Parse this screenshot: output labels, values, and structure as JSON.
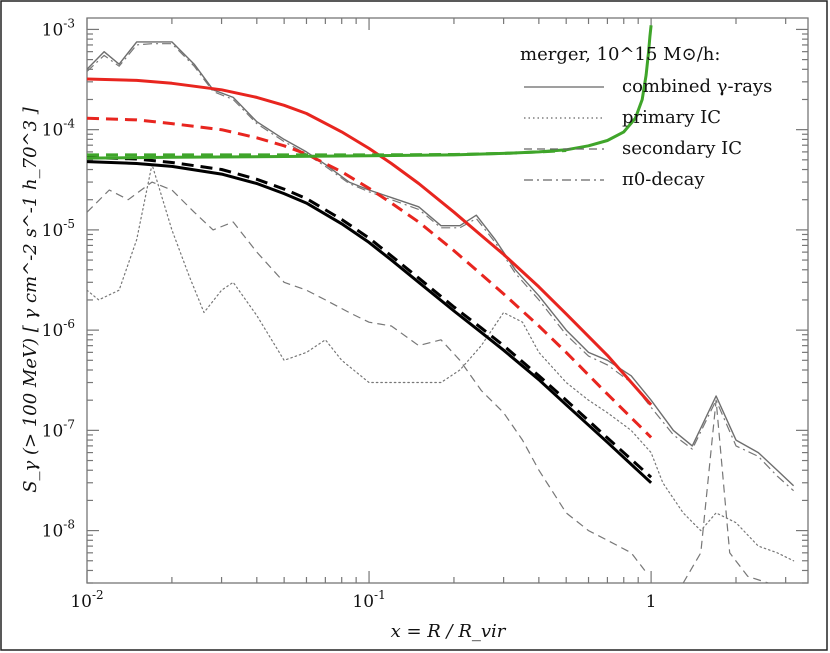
{
  "chart_data": {
    "type": "line",
    "xscale": "log",
    "yscale": "log",
    "xlim": [
      0.01,
      3.6
    ],
    "ylim": [
      3e-09,
      0.0013
    ],
    "xlabel": "x = R / R_vir",
    "ylabel": "S_γ (> 100 MeV) [ γ cm^-2 s^-1 h_70^3 ]",
    "x_ticks": [
      {
        "value": 0.01,
        "base": "10",
        "exp": "-2"
      },
      {
        "value": 0.1,
        "base": "10",
        "exp": "-1"
      },
      {
        "value": 1,
        "base": "1",
        "exp": ""
      }
    ],
    "y_ticks": [
      {
        "value": 1e-08,
        "base": "10",
        "exp": "-8"
      },
      {
        "value": 1e-07,
        "base": "10",
        "exp": "-7"
      },
      {
        "value": 1e-06,
        "base": "10",
        "exp": "-6"
      },
      {
        "value": 1e-05,
        "base": "10",
        "exp": "-5"
      },
      {
        "value": 0.0001,
        "base": "10",
        "exp": "-4"
      },
      {
        "value": 0.001,
        "base": "10",
        "exp": "-3"
      }
    ],
    "legend": {
      "title": "merger, 10^15 M⊙/h:",
      "position": "top-right",
      "entries": [
        {
          "label": "combined γ-rays",
          "style": "solid"
        },
        {
          "label": "primary IC",
          "style": "dotted"
        },
        {
          "label": "secondary IC",
          "style": "dashed"
        },
        {
          "label": "π0-decay",
          "style": "dashdot"
        }
      ]
    },
    "series": [
      {
        "name": "combined γ-rays",
        "color": "#6e6e6e",
        "style": "solid",
        "width": 1.4,
        "x": [
          0.01,
          0.0115,
          0.013,
          0.015,
          0.017,
          0.02,
          0.024,
          0.028,
          0.033,
          0.04,
          0.05,
          0.06,
          0.07,
          0.085,
          0.1,
          0.12,
          0.15,
          0.18,
          0.21,
          0.24,
          0.28,
          0.33,
          0.4,
          0.5,
          0.6,
          0.7,
          0.85,
          1.0,
          1.2,
          1.4,
          1.7,
          2.0,
          2.4,
          2.8,
          3.2
        ],
        "y": [
          0.0004,
          0.0006,
          0.00045,
          0.00075,
          0.00075,
          0.00075,
          0.00045,
          0.00025,
          0.00021,
          0.00012,
          8e-05,
          6e-05,
          4.5e-05,
          3e-05,
          2.5e-05,
          2.1e-05,
          1.7e-05,
          1.1e-05,
          1.1e-05,
          1.4e-05,
          8e-06,
          4e-06,
          2.2e-06,
          1e-06,
          6e-07,
          5e-07,
          3.5e-07,
          2e-07,
          1e-07,
          7e-08,
          2.2e-07,
          8e-08,
          6e-08,
          4e-08,
          2.8e-08
        ]
      },
      {
        "name": "primary IC",
        "color": "#777777",
        "style": "dotted",
        "width": 1.2,
        "x": [
          0.01,
          0.011,
          0.013,
          0.015,
          0.017,
          0.02,
          0.023,
          0.026,
          0.03,
          0.033,
          0.04,
          0.05,
          0.06,
          0.07,
          0.08,
          0.1,
          0.12,
          0.15,
          0.18,
          0.21,
          0.25,
          0.3,
          0.35,
          0.4,
          0.5,
          0.6,
          0.7,
          0.85,
          1.0,
          1.1,
          1.3,
          1.5,
          1.7,
          2.0,
          2.4,
          2.8,
          3.2
        ],
        "y": [
          2.5e-06,
          2e-06,
          2.5e-06,
          8e-06,
          4.5e-05,
          1e-05,
          3.5e-06,
          1.5e-06,
          2.5e-06,
          3e-06,
          1.4e-06,
          5e-07,
          6e-07,
          8e-07,
          5e-07,
          3e-07,
          3e-07,
          3e-07,
          3e-07,
          4e-07,
          7e-07,
          1.5e-06,
          1.2e-06,
          6e-07,
          3e-07,
          2e-07,
          1.5e-07,
          1e-07,
          6e-08,
          3e-08,
          1.5e-08,
          1e-08,
          1.5e-08,
          1.2e-08,
          7e-09,
          6e-09,
          5e-09
        ]
      },
      {
        "name": "secondary IC",
        "color": "#777777",
        "style": "dashed",
        "width": 1.2,
        "x": [
          0.01,
          0.012,
          0.014,
          0.017,
          0.02,
          0.024,
          0.028,
          0.033,
          0.04,
          0.05,
          0.06,
          0.07,
          0.085,
          0.1,
          0.12,
          0.15,
          0.18,
          0.21,
          0.25,
          0.3,
          0.35,
          0.4,
          0.5,
          0.6,
          0.7,
          0.85,
          0.95
        ],
        "y": [
          1.5e-05,
          2.5e-05,
          2e-05,
          3e-05,
          2.5e-05,
          1.5e-05,
          1e-05,
          1.2e-05,
          6e-06,
          3e-06,
          2.5e-06,
          2e-06,
          1.5e-06,
          1.2e-06,
          1.1e-06,
          7e-07,
          8e-07,
          5e-07,
          2.5e-07,
          1.5e-07,
          8e-08,
          4e-08,
          1.5e-08,
          1e-08,
          8e-09,
          6e-09,
          4e-09
        ]
      },
      {
        "name": "secondary IC (tail)",
        "color": "#777777",
        "style": "dashed",
        "width": 1.2,
        "x": [
          1.3,
          1.5,
          1.7,
          1.9,
          2.2,
          2.6
        ],
        "y": [
          3e-09,
          6e-09,
          2e-07,
          6e-09,
          3.5e-09,
          3e-09
        ]
      },
      {
        "name": "π0-decay",
        "color": "#777777",
        "style": "dashdot",
        "width": 1.2,
        "x": [
          0.01,
          0.0115,
          0.013,
          0.015,
          0.017,
          0.02,
          0.024,
          0.028,
          0.033,
          0.04,
          0.05,
          0.06,
          0.07,
          0.085,
          0.1,
          0.12,
          0.15,
          0.18,
          0.21,
          0.24,
          0.28,
          0.33,
          0.4,
          0.5,
          0.6,
          0.7,
          0.85,
          1.0,
          1.2,
          1.4,
          1.7,
          2.0,
          2.4,
          2.8,
          3.2
        ],
        "y": [
          0.00038,
          0.00055,
          0.00043,
          0.0007,
          0.00072,
          0.00072,
          0.00043,
          0.00024,
          0.0002,
          0.000115,
          7.6e-05,
          5.7e-05,
          4.3e-05,
          2.9e-05,
          2.4e-05,
          2e-05,
          1.6e-05,
          1.05e-05,
          1.05e-05,
          1.3e-05,
          7.5e-06,
          3.7e-06,
          2e-06,
          9e-07,
          5.5e-07,
          4.5e-07,
          3e-07,
          1.7e-07,
          9e-08,
          6.5e-08,
          2e-07,
          7e-08,
          5.5e-08,
          3.5e-08,
          2.5e-08
        ]
      },
      {
        "name": "red model",
        "color": "#e8251f",
        "style": "solid",
        "width": 3,
        "x": [
          0.01,
          0.015,
          0.02,
          0.03,
          0.04,
          0.05,
          0.06,
          0.08,
          0.1,
          0.12,
          0.15,
          0.2,
          0.25,
          0.3,
          0.4,
          0.5,
          0.7,
          1.0
        ],
        "y": [
          0.00032,
          0.00031,
          0.00029,
          0.00025,
          0.00021,
          0.000175,
          0.000145,
          9.5e-05,
          6.5e-05,
          4.6e-05,
          2.9e-05,
          1.5e-05,
          8.8e-06,
          5.7e-06,
          2.7e-06,
          1.45e-06,
          5.6e-07,
          1.8e-07
        ]
      },
      {
        "name": "red model (dashed)",
        "color": "#e8251f",
        "style": "bigdash",
        "width": 3,
        "x": [
          0.01,
          0.015,
          0.02,
          0.03,
          0.04,
          0.05,
          0.06,
          0.08,
          0.1,
          0.12,
          0.15,
          0.2,
          0.25,
          0.3,
          0.4,
          0.5,
          0.7,
          1.0
        ],
        "y": [
          0.00013,
          0.000125,
          0.000115,
          0.0001,
          8.3e-05,
          6.9e-05,
          5.7e-05,
          3.8e-05,
          2.6e-05,
          1.85e-05,
          1.2e-05,
          6.2e-06,
          3.6e-06,
          2.3e-06,
          1.1e-06,
          6e-07,
          2.3e-07,
          8.5e-08
        ]
      },
      {
        "name": "black model",
        "color": "#000000",
        "style": "solid",
        "width": 3,
        "x": [
          0.01,
          0.015,
          0.02,
          0.03,
          0.04,
          0.05,
          0.06,
          0.08,
          0.1,
          0.12,
          0.15,
          0.2,
          0.25,
          0.3,
          0.4,
          0.5,
          0.7,
          1.0
        ],
        "y": [
          4.8e-05,
          4.6e-05,
          4.3e-05,
          3.6e-05,
          2.9e-05,
          2.3e-05,
          1.85e-05,
          1.15e-05,
          7.5e-06,
          5e-06,
          3e-06,
          1.55e-06,
          9.5e-07,
          6.3e-07,
          3.2e-07,
          1.8e-07,
          7.6e-08,
          3e-08
        ]
      },
      {
        "name": "black model (dashed)",
        "color": "#000000",
        "style": "bigdash",
        "width": 3,
        "x": [
          0.01,
          0.015,
          0.02,
          0.03,
          0.04,
          0.05,
          0.06,
          0.08,
          0.1,
          0.12,
          0.15,
          0.2,
          0.25,
          0.3,
          0.4,
          0.5,
          0.7,
          1.0
        ],
        "y": [
          5.3e-05,
          5.1e-05,
          4.7e-05,
          4e-05,
          3.2e-05,
          2.55e-05,
          2.05e-05,
          1.27e-05,
          8.3e-06,
          5.5e-06,
          3.3e-06,
          1.7e-06,
          1.05e-06,
          7e-07,
          3.5e-07,
          2e-07,
          8.4e-08,
          3.4e-08
        ]
      },
      {
        "name": "green model",
        "color": "#3fa52a",
        "style": "solid",
        "width": 3,
        "x": [
          0.01,
          0.02,
          0.05,
          0.1,
          0.2,
          0.3,
          0.4,
          0.5,
          0.6,
          0.7,
          0.8,
          0.88,
          0.93,
          0.96,
          0.98,
          0.99,
          1.0
        ],
        "y": [
          5.2e-05,
          5.3e-05,
          5.4e-05,
          5.5e-05,
          5.6e-05,
          5.8e-05,
          6e-05,
          6.3e-05,
          6.9e-05,
          7.8e-05,
          9.5e-05,
          0.00013,
          0.0002,
          0.00035,
          0.0006,
          0.00085,
          0.0011
        ]
      },
      {
        "name": "green model (dashed)",
        "color": "#3fa52a",
        "style": "bigdash",
        "width": 3,
        "x": [
          0.01,
          0.02,
          0.05,
          0.1,
          0.2,
          0.3,
          0.4,
          0.5
        ],
        "y": [
          5.6e-05,
          5.6e-05,
          5.6e-05,
          5.6e-05,
          5.65e-05,
          5.8e-05,
          6e-05,
          6.2e-05
        ]
      }
    ]
  }
}
